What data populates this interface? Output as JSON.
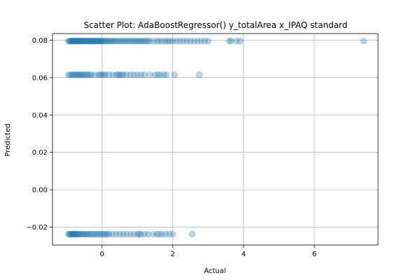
{
  "chart_data": {
    "type": "scatter",
    "title": "Scatter Plot: AdaBoostRegressor() y_totalArea x_IPAQ standard",
    "xlabel": "Actual",
    "ylabel": "Predicted",
    "xlim": [
      -1.4,
      7.8
    ],
    "ylim": [
      -0.0295,
      0.0835
    ],
    "xticks": [
      0,
      2,
      4,
      6
    ],
    "xtick_labels": [
      "0",
      "2",
      "4",
      "6"
    ],
    "yticks": [
      -0.02,
      0.0,
      0.02,
      0.04,
      0.06,
      0.08
    ],
    "ytick_labels": [
      "−0.02",
      "0.00",
      "0.02",
      "0.04",
      "0.06",
      "0.08"
    ],
    "grid": true,
    "point_color": "#1f77b4",
    "point_alpha": 0.3,
    "series": [
      {
        "y": 0.0795,
        "x": [
          -0.95,
          -0.92,
          -0.9,
          -0.88,
          -0.86,
          -0.84,
          -0.82,
          -0.8,
          -0.78,
          -0.76,
          -0.74,
          -0.72,
          -0.7,
          -0.68,
          -0.66,
          -0.64,
          -0.62,
          -0.6,
          -0.58,
          -0.55,
          -0.52,
          -0.5,
          -0.48,
          -0.45,
          -0.42,
          -0.4,
          -0.38,
          -0.35,
          -0.32,
          -0.3,
          -0.28,
          -0.25,
          -0.22,
          -0.2,
          -0.18,
          -0.15,
          -0.12,
          -0.1,
          -0.08,
          -0.05,
          -0.02,
          0.0,
          0.03,
          0.06,
          0.1,
          0.14,
          0.18,
          0.22,
          0.26,
          0.3,
          0.35,
          0.4,
          0.45,
          0.5,
          0.55,
          0.6,
          0.65,
          0.7,
          0.75,
          0.8,
          0.85,
          0.9,
          0.95,
          1.0,
          1.05,
          1.1,
          1.15,
          1.2,
          1.25,
          1.3,
          1.35,
          1.45,
          1.55,
          1.62,
          1.7,
          1.78,
          1.85,
          1.92,
          2.0,
          2.1,
          2.2,
          2.3,
          2.4,
          2.5,
          2.6,
          2.7,
          2.8,
          2.9,
          3.0,
          3.6,
          3.65,
          3.8,
          3.9,
          7.4
        ]
      },
      {
        "y": 0.0615,
        "x": [
          -0.95,
          -0.9,
          -0.86,
          -0.82,
          -0.78,
          -0.74,
          -0.7,
          -0.66,
          -0.62,
          -0.58,
          -0.54,
          -0.5,
          -0.45,
          -0.4,
          -0.35,
          -0.3,
          -0.2,
          -0.1,
          -0.05,
          0.0,
          0.05,
          0.1,
          0.2,
          0.3,
          0.4,
          0.45,
          0.5,
          0.55,
          0.6,
          0.7,
          0.8,
          0.9,
          1.0,
          1.1,
          1.2,
          1.35,
          1.5,
          1.58,
          1.65,
          1.75,
          1.82,
          2.05,
          2.75
        ]
      },
      {
        "y": -0.0237,
        "x": [
          -0.95,
          -0.92,
          -0.9,
          -0.87,
          -0.84,
          -0.82,
          -0.8,
          -0.77,
          -0.74,
          -0.72,
          -0.7,
          -0.67,
          -0.64,
          -0.6,
          -0.56,
          -0.52,
          -0.48,
          -0.44,
          -0.4,
          -0.35,
          -0.3,
          -0.25,
          -0.2,
          -0.15,
          -0.1,
          -0.05,
          0.0,
          0.05,
          0.1,
          0.15,
          0.2,
          0.3,
          0.4,
          0.5,
          0.6,
          0.7,
          0.8,
          0.9,
          1.0,
          1.05,
          1.1,
          1.2,
          1.3,
          1.45,
          1.55,
          1.62,
          1.7,
          1.8,
          1.9,
          2.0,
          2.55
        ]
      }
    ]
  }
}
